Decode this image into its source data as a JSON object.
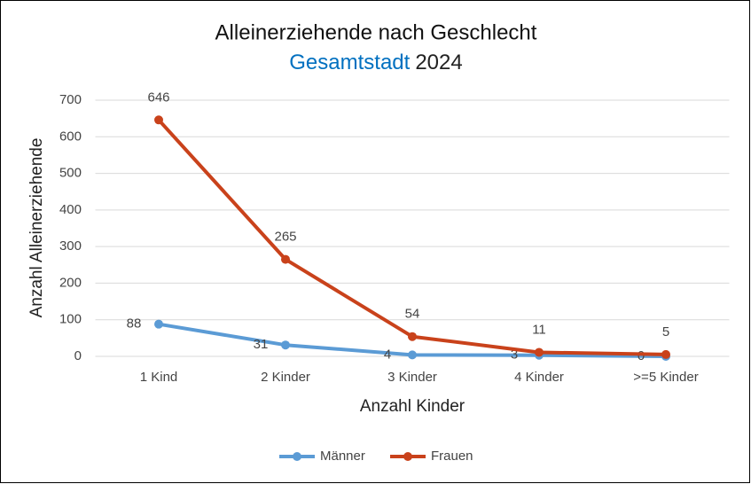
{
  "chart_data": {
    "type": "line",
    "title": "Alleinerziehende nach Geschlecht",
    "subtitle_parts": [
      {
        "text": "Gesamtstadt",
        "color": "#0070c0"
      },
      {
        "text": "2024",
        "color": "#222222"
      }
    ],
    "x_label": "Anzahl Kinder",
    "y_label": "Anzahl Alleinerziehende",
    "categories": [
      "1 Kind",
      "2 Kinder",
      "3 Kinder",
      "4 Kinder",
      ">=5 Kinder"
    ],
    "series": [
      {
        "name": "Männer",
        "color": "#5b9bd5",
        "values": [
          88,
          31,
          4,
          3,
          0
        ]
      },
      {
        "name": "Frauen",
        "color": "#c9421b",
        "values": [
          646,
          265,
          54,
          11,
          5
        ]
      }
    ],
    "ylim": [
      0,
      700
    ],
    "yticks": [
      0,
      100,
      200,
      300,
      400,
      500,
      600,
      700
    ],
    "grid": true,
    "legend": "bottom"
  }
}
